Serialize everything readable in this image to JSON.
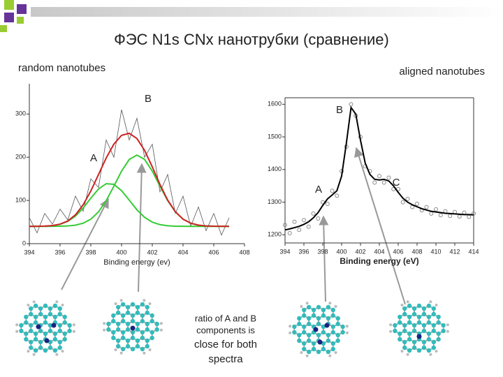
{
  "title": "ФЭС N1s CNx нанотрубки (сравнение)",
  "left_label": "random nanotubes",
  "right_label": "aligned nanotubes",
  "note": [
    "ratio of A and B",
    "components is",
    "close for both",
    "spectra"
  ],
  "chart_data": [
    {
      "type": "line",
      "xlabel": "Binding energy (ev)",
      "xlim": [
        394,
        408
      ],
      "xticks": [
        394,
        396,
        398,
        400,
        402,
        404,
        406,
        408
      ],
      "ylim": [
        0,
        370
      ],
      "yticks": [
        0,
        100,
        200,
        300
      ],
      "annotations": [
        "A",
        "B"
      ],
      "x": [
        394,
        394.5,
        395,
        395.5,
        396,
        396.5,
        397,
        397.5,
        398,
        398.5,
        399,
        399.5,
        400,
        400.5,
        401,
        401.5,
        402,
        402.5,
        403,
        403.5,
        404,
        404.5,
        405,
        405.5,
        406,
        406.5,
        407
      ],
      "series": [
        {
          "color": "#555555",
          "values": [
            60,
            25,
            70,
            45,
            80,
            55,
            110,
            75,
            150,
            130,
            240,
            200,
            310,
            240,
            290,
            200,
            230,
            120,
            160,
            70,
            110,
            40,
            85,
            30,
            70,
            20,
            60
          ]
        },
        {
          "color": "#33cc33",
          "values": [
            40,
            40.1,
            40.5,
            41.7,
            44.8,
            51.6,
            63.9,
            82.5,
            105.3,
            126.5,
            138.8,
            137.4,
            122.7,
            100.7,
            78.3,
            60.9,
            49.8,
            44,
            41.4,
            40.4,
            40.1,
            40,
            40,
            40,
            40,
            40,
            40
          ]
        },
        {
          "color": "#33cc33",
          "values": [
            40,
            40,
            40,
            40.1,
            40.3,
            40.9,
            42.8,
            47.3,
            56.6,
            73.5,
            99.5,
            132.9,
            167.9,
            194.8,
            205,
            194.8,
            167.9,
            132.9,
            99.5,
            73.5,
            56.6,
            47.3,
            42.8,
            40.9,
            40.3,
            40.1,
            40
          ]
        },
        {
          "color": "#cc2222",
          "values": [
            40,
            40.1,
            40.5,
            41.8,
            45.1,
            52.5,
            66.7,
            89.8,
            121.9,
            160,
            198.3,
            230.3,
            250.6,
            255.5,
            243.3,
            215.7,
            177.7,
            136.9,
            100.9,
            73.9,
            56.7,
            47.3,
            42.8,
            40.9,
            40.3,
            40.1,
            40
          ]
        }
      ]
    },
    {
      "type": "line",
      "xlabel": "Binding energy (eV)",
      "xlim": [
        394,
        414
      ],
      "xticks": [
        394,
        396,
        398,
        400,
        402,
        404,
        406,
        408,
        410,
        412,
        414
      ],
      "ylim": [
        1175,
        1620
      ],
      "yticks": [
        1200,
        1300,
        1400,
        1500,
        1600
      ],
      "annotations": [
        "B",
        "A",
        "C"
      ],
      "x": [
        394,
        394.5,
        395,
        395.5,
        396,
        396.5,
        397,
        397.5,
        398,
        398.5,
        399,
        399.5,
        400,
        400.5,
        401,
        401.5,
        402,
        402.5,
        403,
        403.5,
        404,
        404.5,
        405,
        405.5,
        406,
        406.5,
        407,
        407.5,
        408,
        408.5,
        409,
        409.5,
        410,
        410.5,
        411,
        411.5,
        412,
        412.5,
        413,
        413.5,
        414
      ],
      "series": [
        {
          "color": "#888888",
          "mode": "markers",
          "values": [
            1230,
            1205,
            1240,
            1215,
            1245,
            1225,
            1265,
            1250,
            1300,
            1295,
            1335,
            1320,
            1395,
            1470,
            1600,
            1565,
            1500,
            1410,
            1395,
            1360,
            1380,
            1360,
            1375,
            1340,
            1340,
            1300,
            1310,
            1285,
            1295,
            1275,
            1285,
            1265,
            1278,
            1260,
            1272,
            1258,
            1270,
            1256,
            1268,
            1255,
            1265
          ]
        },
        {
          "color": "#000000",
          "values": [
            1215,
            1218,
            1222,
            1226,
            1232,
            1240,
            1252,
            1268,
            1290,
            1310,
            1322,
            1335,
            1380,
            1480,
            1590,
            1570,
            1490,
            1420,
            1385,
            1370,
            1368,
            1370,
            1365,
            1350,
            1330,
            1312,
            1300,
            1292,
            1286,
            1280,
            1276,
            1272,
            1270,
            1268,
            1266,
            1265,
            1264,
            1263,
            1262,
            1262,
            1261
          ]
        }
      ]
    }
  ]
}
